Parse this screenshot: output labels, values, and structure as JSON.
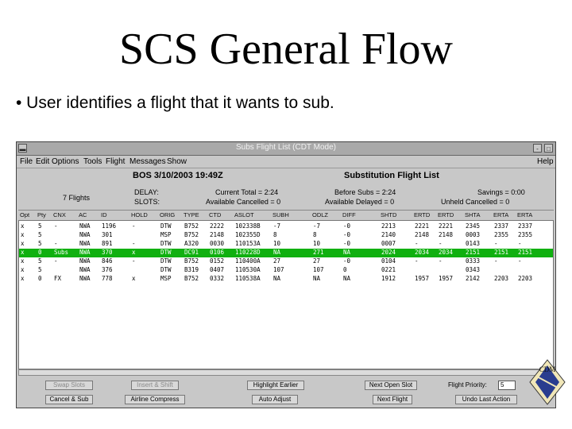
{
  "slide": {
    "title": "SCS General Flow",
    "bullet": "• User identifies a flight that it wants to sub."
  },
  "window": {
    "title": "Subs Flight List (CDT Mode)",
    "controls": [
      "-",
      "□"
    ],
    "menu": [
      "File",
      "Edit",
      "Options",
      "Tools",
      "Flight",
      "Messages",
      "Show"
    ],
    "help": "Help"
  },
  "header": {
    "airport_time": "BOS 3/10/2003 19:49Z",
    "list_title": "Substitution Flight List",
    "flights": "7 Flights",
    "delay_label": "DELAY:",
    "slots_label": "SLOTS:",
    "current_total": "Current Total = 2:24",
    "before_subs": "Before Subs = 2:24",
    "savings": "Savings = 0:00",
    "available_cancelled": "Available Cancelled = 0",
    "available_delayed": "Available Delayed = 0",
    "unheld_cancelled": "Unheld Cancelled = 0"
  },
  "table": {
    "columns": [
      "Opt",
      "Pty",
      "CNX",
      "AC",
      "ID",
      "HOLD",
      "ORIG",
      "TYPE",
      "CTD",
      "ASLOT",
      "SUBH",
      "ODLZ",
      "DIFF",
      "SHTD",
      "ERTD",
      "ERTD",
      "SHTA",
      "ERTA",
      "ERTA"
    ],
    "rows": [
      [
        "x",
        "5",
        "-",
        "NWA",
        "1196",
        "-",
        "DTW",
        "B752",
        "2222",
        "102338B",
        "-7",
        "-7",
        "-0",
        "2213",
        "2221",
        "2221",
        "2345",
        "2337",
        "2337"
      ],
      [
        "x",
        "5",
        "",
        "NWA",
        "301",
        "",
        "MSP",
        "B752",
        "2148",
        "102355D",
        "8",
        "8",
        "-0",
        "2140",
        "2148",
        "2148",
        "0003",
        "2355",
        "2355"
      ],
      [
        "x",
        "5",
        "-",
        "NWA",
        "891",
        "-",
        "DTW",
        "A320",
        "0030",
        "110153A",
        "10",
        "10",
        "-0",
        "0007",
        "-",
        "-",
        "0143",
        "-",
        "-"
      ],
      [
        "x",
        "0",
        "Subs",
        "NWA",
        "370",
        "x",
        "DTW",
        "DC91",
        "0106",
        "110228D",
        "NA",
        "271",
        "NA",
        "2024",
        "2034",
        "2034",
        "2151",
        "2151",
        "2151"
      ],
      [
        "x",
        "5",
        "-",
        "NWA",
        "846",
        "-",
        "DTW",
        "B752",
        "0152",
        "110400A",
        "27",
        "27",
        "-0",
        "0104",
        "-",
        "-",
        "0333",
        "-",
        "-"
      ],
      [
        "x",
        "5",
        "",
        "NWA",
        "376",
        "",
        "DTW",
        "B319",
        "0407",
        "110530A",
        "107",
        "107",
        "0",
        "0221",
        "",
        "",
        "0343",
        "",
        ""
      ],
      [
        "x",
        "0",
        "FX",
        "NWA",
        "778",
        "x",
        "MSP",
        "B752",
        "0332",
        "110538A",
        "NA",
        "NA",
        "NA",
        "1912",
        "1957",
        "1957",
        "2142",
        "2203",
        "2203"
      ]
    ],
    "selected_row": 3
  },
  "buttons": {
    "swap_slots": "Swap Slots",
    "insert_shift": "Insert & Shift",
    "highlight_earlier": "Highlight Earlier",
    "next_open_slot": "Next Open Slot",
    "flight_priority_label": "Flight Priority:",
    "flight_priority_value": "5",
    "cancel_sub": "Cancel & Sub",
    "airline_compress": "Airline Compress",
    "auto_adjust": "Auto Adjust",
    "next_flight": "Next Flight",
    "undo_last_action": "Undo Last Action"
  },
  "logo": {
    "text": "CDM"
  },
  "colors": {
    "selected_row": "#10b010",
    "window_bg": "#c8c8c8"
  }
}
